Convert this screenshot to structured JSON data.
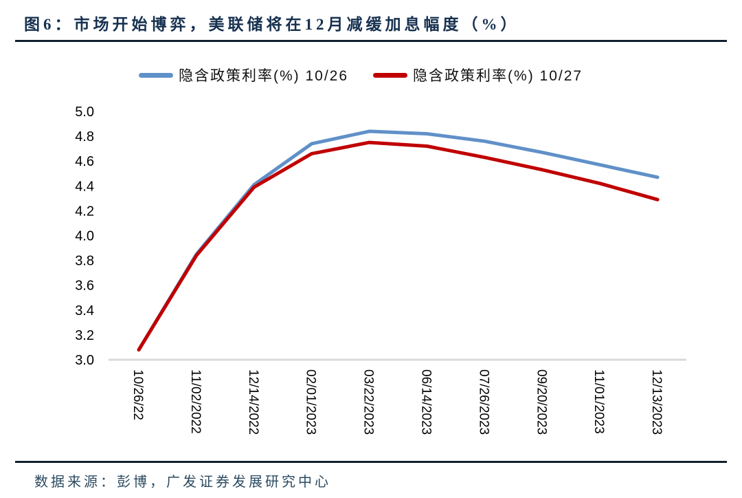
{
  "header": {
    "title": "图6：市场开始博弈，美联储将在12月减缓加息幅度（%）"
  },
  "legend": {
    "items": [
      {
        "label": "隐含政策利率(%) 10/26",
        "color": "#6090C8"
      },
      {
        "label": "隐含政策利率(%) 10/27",
        "color": "#C00000"
      }
    ]
  },
  "footer": {
    "source": "数据来源：彭博，广发证券发展研究中心"
  },
  "chart_data": {
    "type": "line",
    "title": "市场开始博弈，美联储将在12月减缓加息幅度（%）",
    "categories": [
      "10/26/22",
      "11/02/2022",
      "12/14/2022",
      "02/01/2023",
      "03/22/2023",
      "06/14/2023",
      "07/26/2023",
      "09/20/2023",
      "11/01/2023",
      "12/13/2023"
    ],
    "series": [
      {
        "name": "隐含政策利率(%) 10/26",
        "color": "#6090C8",
        "values": [
          3.08,
          3.85,
          4.41,
          4.74,
          4.84,
          4.82,
          4.76,
          4.67,
          4.57,
          4.47
        ]
      },
      {
        "name": "隐含政策利率(%) 10/27",
        "color": "#C00000",
        "values": [
          3.08,
          3.84,
          4.39,
          4.66,
          4.75,
          4.72,
          4.63,
          4.53,
          4.42,
          4.29
        ]
      }
    ],
    "xlabel": "",
    "ylabel": "",
    "ylim": [
      3.0,
      5.0
    ],
    "yticks": [
      "5.0",
      "4.8",
      "4.6",
      "4.4",
      "4.2",
      "4.0",
      "3.8",
      "3.6",
      "3.4",
      "3.2",
      "3.0"
    ],
    "grid": false,
    "axis_line": "bottom-only",
    "axis_line_color": "#D9D9D9",
    "tick_label_color": "#000000",
    "x_tick_rotation_deg": 90,
    "legend_position": "top"
  }
}
